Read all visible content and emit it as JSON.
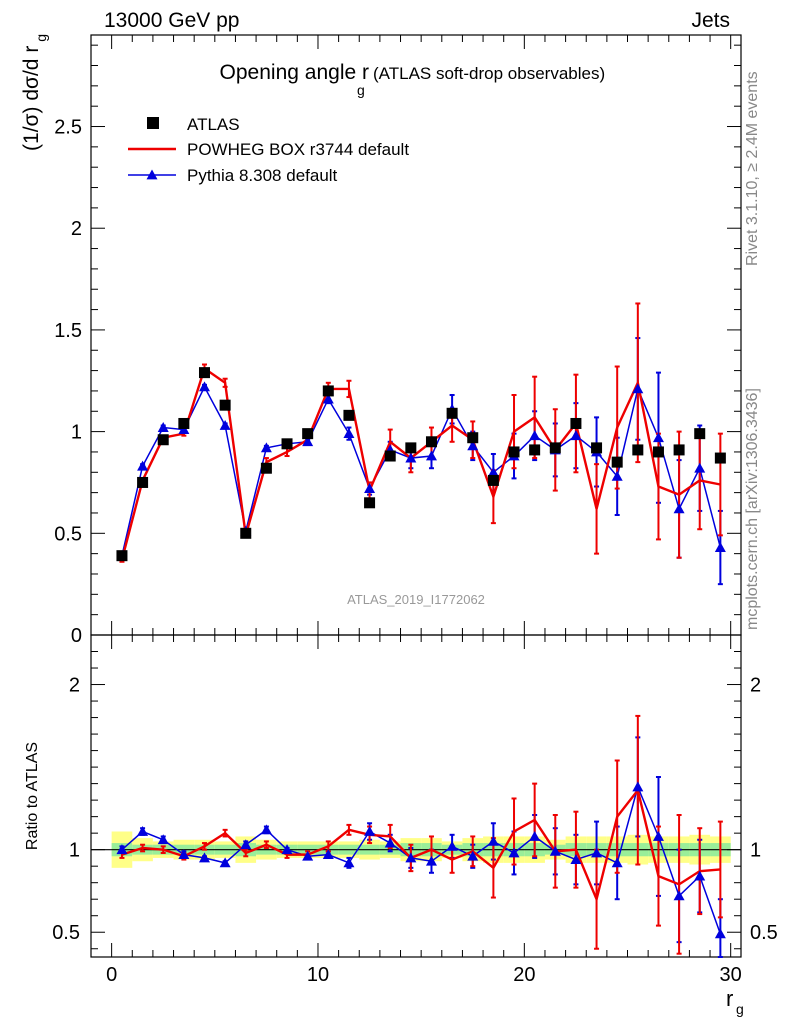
{
  "header": {
    "left": "13000 GeV pp",
    "right": "Jets"
  },
  "side_text": {
    "rivet": "Rivet 3.1.10, ≥ 2.4M events",
    "mcplots": "mcplots.cern.ch [arXiv:1306.3436]"
  },
  "chart_data": {
    "type": "scatter",
    "title": "Opening angle r",
    "title_sub": "g",
    "title_suffix": "(ATLAS soft-drop observables)",
    "watermark": "ATLAS_2019_I1772062",
    "xlabel": "r",
    "xlabel_sub": "g",
    "ylabel": "(1/σ) dσ/d r",
    "ylabel_sub": "g",
    "ratio_ylabel": "Ratio to ATLAS",
    "xlim": [
      -1,
      30.5
    ],
    "ylim": [
      0,
      2.95
    ],
    "ratio_ylim": [
      0.35,
      2.3
    ],
    "x_ticks": [
      "0",
      "10",
      "20",
      "30"
    ],
    "y_ticks": [
      "0",
      "0.5",
      "1",
      "1.5",
      "2",
      "2.5"
    ],
    "ratio_ticks": [
      "0.5",
      "1",
      "2"
    ],
    "colors": {
      "data": "#000000",
      "powheg": "#ee0000",
      "pythia": "#0000dd",
      "band_inner": "#99ee99",
      "band_outer": "#ffff88"
    },
    "x": [
      0.5,
      1.5,
      2.5,
      3.5,
      4.5,
      5.5,
      6.5,
      7.5,
      8.5,
      9.5,
      10.5,
      11.5,
      12.5,
      13.5,
      14.5,
      15.5,
      16.5,
      17.5,
      18.5,
      19.5,
      20.5,
      21.5,
      22.5,
      23.5,
      24.5,
      25.5,
      26.5,
      27.5,
      28.5,
      29.5
    ],
    "series": [
      {
        "name": "ATLAS",
        "marker": "square",
        "values": [
          0.39,
          0.75,
          0.96,
          1.04,
          1.29,
          1.13,
          0.5,
          0.82,
          0.94,
          0.99,
          1.2,
          1.08,
          0.65,
          0.88,
          0.92,
          0.95,
          1.09,
          0.97,
          0.76,
          0.9,
          0.91,
          0.92,
          1.04,
          0.92,
          0.85,
          0.91,
          0.9,
          0.91,
          0.99,
          0.87
        ]
      },
      {
        "name": "POWHEG BOX r3744 default",
        "marker": "line",
        "values": [
          0.37,
          0.76,
          0.97,
          0.99,
          1.31,
          1.24,
          0.49,
          0.85,
          0.9,
          0.96,
          1.21,
          1.21,
          0.71,
          0.95,
          0.87,
          0.95,
          1.03,
          0.96,
          0.68,
          1.0,
          1.07,
          0.91,
          1.04,
          0.62,
          1.02,
          1.24,
          0.73,
          0.69,
          0.76,
          0.74
        ],
        "errors": [
          0.01,
          0.01,
          0.01,
          0.01,
          0.02,
          0.02,
          0.01,
          0.02,
          0.02,
          0.02,
          0.03,
          0.04,
          0.04,
          0.06,
          0.07,
          0.07,
          0.08,
          0.09,
          0.13,
          0.18,
          0.2,
          0.2,
          0.24,
          0.22,
          0.3,
          0.39,
          0.26,
          0.31,
          0.24,
          0.25
        ]
      },
      {
        "name": "Pythia 8.308 default",
        "marker": "triangle",
        "values": [
          0.39,
          0.83,
          1.02,
          1.01,
          1.22,
          1.03,
          0.51,
          0.92,
          0.94,
          0.95,
          1.16,
          0.99,
          0.72,
          0.91,
          0.87,
          0.88,
          1.11,
          0.93,
          0.8,
          0.88,
          0.98,
          0.91,
          0.98,
          0.9,
          0.78,
          1.21,
          0.97,
          0.62,
          0.82,
          0.43
        ],
        "errors": [
          0.01,
          0.01,
          0.01,
          0.01,
          0.01,
          0.01,
          0.01,
          0.01,
          0.01,
          0.01,
          0.02,
          0.03,
          0.03,
          0.04,
          0.05,
          0.06,
          0.07,
          0.07,
          0.09,
          0.11,
          0.12,
          0.13,
          0.16,
          0.17,
          0.19,
          0.25,
          0.32,
          0.24,
          0.21,
          0.18
        ]
      }
    ],
    "ratio_powheg": [
      0.97,
      1.01,
      1.0,
      0.96,
      1.02,
      1.1,
      0.98,
      1.03,
      0.97,
      0.97,
      1.02,
      1.12,
      1.09,
      1.08,
      0.95,
      1.0,
      0.94,
      0.99,
      0.89,
      1.11,
      1.18,
      0.99,
      1.0,
      0.7,
      1.2,
      1.36,
      0.84,
      0.79,
      0.87,
      0.88
    ],
    "ratio_pythia": [
      1.0,
      1.11,
      1.06,
      0.97,
      0.95,
      0.92,
      1.03,
      1.12,
      1.0,
      0.96,
      0.97,
      0.92,
      1.11,
      1.04,
      0.95,
      0.93,
      1.02,
      0.96,
      1.05,
      0.98,
      1.08,
      0.99,
      0.94,
      0.98,
      0.92,
      1.38,
      1.08,
      0.72,
      0.84,
      0.49
    ],
    "ratio_powheg_err": [
      0.02,
      0.02,
      0.02,
      0.02,
      0.02,
      0.02,
      0.02,
      0.02,
      0.02,
      0.02,
      0.03,
      0.03,
      0.05,
      0.07,
      0.08,
      0.08,
      0.08,
      0.09,
      0.18,
      0.2,
      0.22,
      0.22,
      0.23,
      0.3,
      0.34,
      0.45,
      0.3,
      0.42,
      0.26,
      0.29
    ],
    "ratio_pythia_err": [
      0.02,
      0.02,
      0.02,
      0.02,
      0.01,
      0.01,
      0.02,
      0.02,
      0.01,
      0.01,
      0.02,
      0.03,
      0.05,
      0.05,
      0.06,
      0.07,
      0.07,
      0.07,
      0.11,
      0.13,
      0.13,
      0.14,
      0.15,
      0.19,
      0.22,
      0.3,
      0.36,
      0.28,
      0.22,
      0.21
    ],
    "band_inner": [
      0.04,
      0.03,
      0.03,
      0.03,
      0.03,
      0.03,
      0.04,
      0.03,
      0.03,
      0.03,
      0.03,
      0.03,
      0.03,
      0.03,
      0.04,
      0.04,
      0.03,
      0.04,
      0.04,
      0.04,
      0.04,
      0.03,
      0.04,
      0.04,
      0.04,
      0.04,
      0.04,
      0.04,
      0.04,
      0.04
    ],
    "band_outer": [
      0.11,
      0.07,
      0.05,
      0.06,
      0.06,
      0.05,
      0.08,
      0.06,
      0.05,
      0.05,
      0.05,
      0.05,
      0.06,
      0.05,
      0.07,
      0.07,
      0.05,
      0.07,
      0.08,
      0.08,
      0.08,
      0.06,
      0.08,
      0.08,
      0.08,
      0.09,
      0.08,
      0.08,
      0.09,
      0.08
    ]
  }
}
